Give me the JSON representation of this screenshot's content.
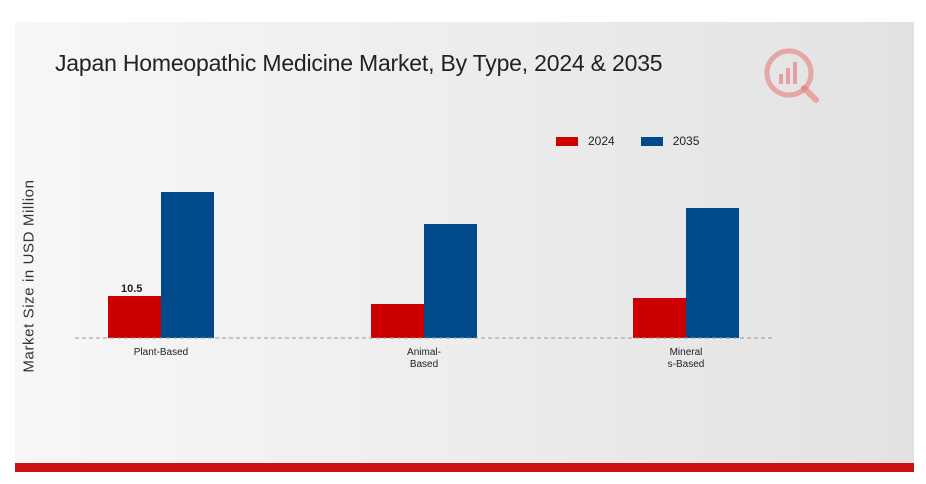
{
  "chart_data": {
    "type": "bar",
    "title": "Japan Homeopathic Medicine Market, By Type, 2024 & 2035",
    "ylabel": "Market Size in USD Million",
    "xlabel": "",
    "categories": [
      "Plant-Based",
      "Animal-\nBased",
      "Mineral\ns-Based"
    ],
    "series": [
      {
        "name": "2024",
        "color": "#cc0000",
        "values": [
          10.5,
          8.5,
          10.0
        ]
      },
      {
        "name": "2035",
        "color": "#004a8c",
        "values": [
          36.5,
          28.5,
          32.5
        ]
      }
    ],
    "data_labels": [
      {
        "series": 0,
        "index": 0,
        "text": "10.5"
      }
    ],
    "ylim": [
      0,
      40
    ],
    "grid": false,
    "legend_position": "top-right"
  },
  "logo": {
    "name": "brand-logo-icon",
    "color": "#d32f2f"
  }
}
